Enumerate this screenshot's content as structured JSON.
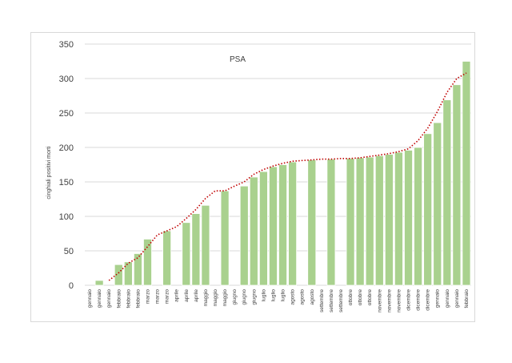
{
  "chart_data": {
    "type": "bar",
    "title": "PSA",
    "xlabel": "",
    "ylabel": "cinghiali positivi morti",
    "ylim": [
      0,
      350
    ],
    "yticks": [
      0,
      50,
      100,
      150,
      200,
      250,
      300,
      350
    ],
    "grid": true,
    "legend": "none",
    "trendline": "moving-average",
    "colors": {
      "bar": "#a9d18e",
      "bar_border": "#ffffff",
      "trend": "#c00000",
      "grid": "#d9d9d9",
      "text": "#404040"
    },
    "categories": [
      "gennaio",
      "gennaio",
      "gennaio",
      "febbraio",
      "febbraio",
      "febbraio",
      "marzo",
      "marzo",
      "marzo",
      "aprile",
      "aprile",
      "aprile",
      "maggio",
      "maggio",
      "maggio",
      "giugno",
      "giugno",
      "giugno",
      "luglio",
      "luglio",
      "luglio",
      "agosto",
      "agosto",
      "agosto",
      "settembre",
      "settembre",
      "settembre",
      "ottobre",
      "ottobre",
      "ottobre",
      "novembre",
      "novembre",
      "novembre",
      "dicembre",
      "dicembre",
      "dicembre",
      "gennaio",
      "gennaio",
      "gennaio",
      "febbraio"
    ],
    "values": [
      null,
      7,
      null,
      30,
      34,
      46,
      67,
      null,
      79,
      null,
      91,
      104,
      116,
      null,
      137,
      null,
      144,
      157,
      165,
      172,
      175,
      179,
      null,
      182,
      null,
      183,
      null,
      184,
      185,
      186,
      188,
      190,
      193,
      196,
      200,
      220,
      236,
      269,
      291,
      325
    ],
    "trend": [
      null,
      null,
      7,
      18,
      32,
      40,
      56,
      73,
      79,
      85,
      97,
      110,
      126,
      137,
      137,
      144,
      150,
      161,
      168,
      173,
      177,
      180,
      181,
      182,
      183,
      183,
      184,
      184,
      185,
      187,
      189,
      191,
      194,
      198,
      210,
      228,
      252,
      280,
      300,
      308
    ]
  }
}
